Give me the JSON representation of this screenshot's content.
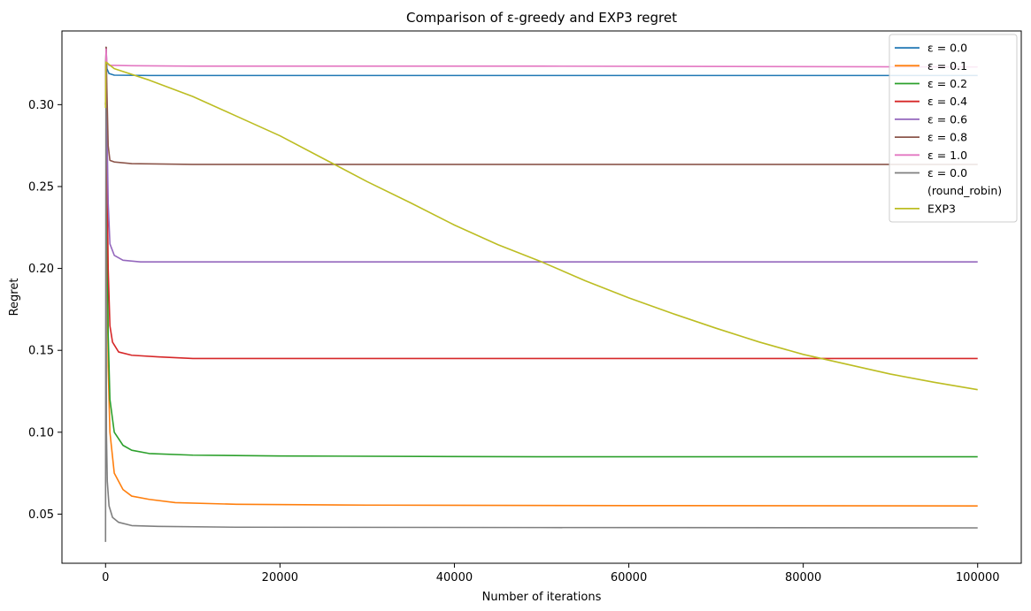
{
  "chart_data": {
    "type": "line",
    "title": "Comparison of ε-greedy and EXP3 regret",
    "xlabel": "Number of iterations",
    "ylabel": "Regret",
    "xlim": [
      -5000,
      105000
    ],
    "ylim": [
      0.02,
      0.345
    ],
    "xticks": [
      0,
      20000,
      40000,
      60000,
      80000,
      100000
    ],
    "yticks": [
      0.05,
      0.1,
      0.15,
      0.2,
      0.25,
      0.3
    ],
    "ytick_labels": [
      "0.05",
      "0.10",
      "0.15",
      "0.20",
      "0.25",
      "0.30"
    ],
    "grid": false,
    "legend_position": "top-right",
    "series": [
      {
        "name": "ε = 0.0",
        "color": "#1f77b4",
        "points": [
          [
            0,
            0.3
          ],
          [
            60,
            0.335
          ],
          [
            150,
            0.322
          ],
          [
            400,
            0.319
          ],
          [
            1000,
            0.318
          ],
          [
            5000,
            0.3178
          ],
          [
            20000,
            0.3178
          ],
          [
            50000,
            0.3178
          ],
          [
            100000,
            0.3178
          ]
        ]
      },
      {
        "name": "ε = 0.1",
        "color": "#ff7f0e",
        "points": [
          [
            0,
            0.3
          ],
          [
            60,
            0.335
          ],
          [
            150,
            0.22
          ],
          [
            300,
            0.14
          ],
          [
            500,
            0.1
          ],
          [
            1000,
            0.075
          ],
          [
            2000,
            0.065
          ],
          [
            3000,
            0.061
          ],
          [
            5000,
            0.059
          ],
          [
            8000,
            0.057
          ],
          [
            15000,
            0.056
          ],
          [
            30000,
            0.0555
          ],
          [
            60000,
            0.0552
          ],
          [
            100000,
            0.055
          ]
        ]
      },
      {
        "name": "ε = 0.2",
        "color": "#2ca02c",
        "points": [
          [
            0,
            0.3
          ],
          [
            60,
            0.335
          ],
          [
            150,
            0.25
          ],
          [
            300,
            0.16
          ],
          [
            500,
            0.12
          ],
          [
            1000,
            0.1
          ],
          [
            2000,
            0.092
          ],
          [
            3000,
            0.089
          ],
          [
            5000,
            0.087
          ],
          [
            10000,
            0.086
          ],
          [
            20000,
            0.0855
          ],
          [
            50000,
            0.085
          ],
          [
            100000,
            0.085
          ]
        ]
      },
      {
        "name": "ε = 0.4",
        "color": "#d62728",
        "points": [
          [
            0,
            0.3
          ],
          [
            60,
            0.335
          ],
          [
            150,
            0.27
          ],
          [
            300,
            0.2
          ],
          [
            500,
            0.165
          ],
          [
            800,
            0.155
          ],
          [
            1500,
            0.149
          ],
          [
            3000,
            0.147
          ],
          [
            6000,
            0.146
          ],
          [
            10000,
            0.145
          ],
          [
            30000,
            0.145
          ],
          [
            100000,
            0.145
          ]
        ]
      },
      {
        "name": "ε = 0.6",
        "color": "#9467bd",
        "points": [
          [
            0,
            0.3
          ],
          [
            60,
            0.335
          ],
          [
            150,
            0.29
          ],
          [
            300,
            0.24
          ],
          [
            500,
            0.215
          ],
          [
            1000,
            0.208
          ],
          [
            2000,
            0.205
          ],
          [
            4000,
            0.204
          ],
          [
            10000,
            0.204
          ],
          [
            100000,
            0.204
          ]
        ]
      },
      {
        "name": "ε = 0.8",
        "color": "#8c564b",
        "points": [
          [
            0,
            0.3
          ],
          [
            60,
            0.335
          ],
          [
            150,
            0.31
          ],
          [
            300,
            0.275
          ],
          [
            500,
            0.266
          ],
          [
            1000,
            0.265
          ],
          [
            3000,
            0.264
          ],
          [
            10000,
            0.2635
          ],
          [
            100000,
            0.2635
          ]
        ]
      },
      {
        "name": "ε = 1.0",
        "color": "#e377c2",
        "points": [
          [
            0,
            0.3
          ],
          [
            60,
            0.334
          ],
          [
            150,
            0.326
          ],
          [
            400,
            0.324
          ],
          [
            1000,
            0.324
          ],
          [
            3000,
            0.3238
          ],
          [
            10000,
            0.3235
          ],
          [
            50000,
            0.3235
          ],
          [
            100000,
            0.323
          ]
        ]
      },
      {
        "name": "ε = 0.0 (round_robin)",
        "color": "#7f7f7f",
        "points": [
          [
            0,
            0.033
          ],
          [
            40,
            0.3
          ],
          [
            100,
            0.1
          ],
          [
            200,
            0.07
          ],
          [
            400,
            0.055
          ],
          [
            800,
            0.048
          ],
          [
            1500,
            0.045
          ],
          [
            3000,
            0.043
          ],
          [
            6000,
            0.0425
          ],
          [
            15000,
            0.042
          ],
          [
            50000,
            0.0418
          ],
          [
            100000,
            0.0416
          ]
        ]
      },
      {
        "name": "EXP3",
        "color": "#bcbd22",
        "points": [
          [
            0,
            0.298
          ],
          [
            40,
            0.326
          ],
          [
            1000,
            0.322
          ],
          [
            5000,
            0.315
          ],
          [
            10000,
            0.305
          ],
          [
            15000,
            0.293
          ],
          [
            20000,
            0.281
          ],
          [
            25000,
            0.267
          ],
          [
            30000,
            0.253
          ],
          [
            35000,
            0.24
          ],
          [
            40000,
            0.2265
          ],
          [
            45000,
            0.2145
          ],
          [
            50000,
            0.204
          ],
          [
            55000,
            0.1925
          ],
          [
            60000,
            0.182
          ],
          [
            65000,
            0.1725
          ],
          [
            70000,
            0.1635
          ],
          [
            75000,
            0.155
          ],
          [
            80000,
            0.1475
          ],
          [
            85000,
            0.1415
          ],
          [
            90000,
            0.1355
          ],
          [
            95000,
            0.1305
          ],
          [
            100000,
            0.126
          ]
        ]
      }
    ]
  }
}
